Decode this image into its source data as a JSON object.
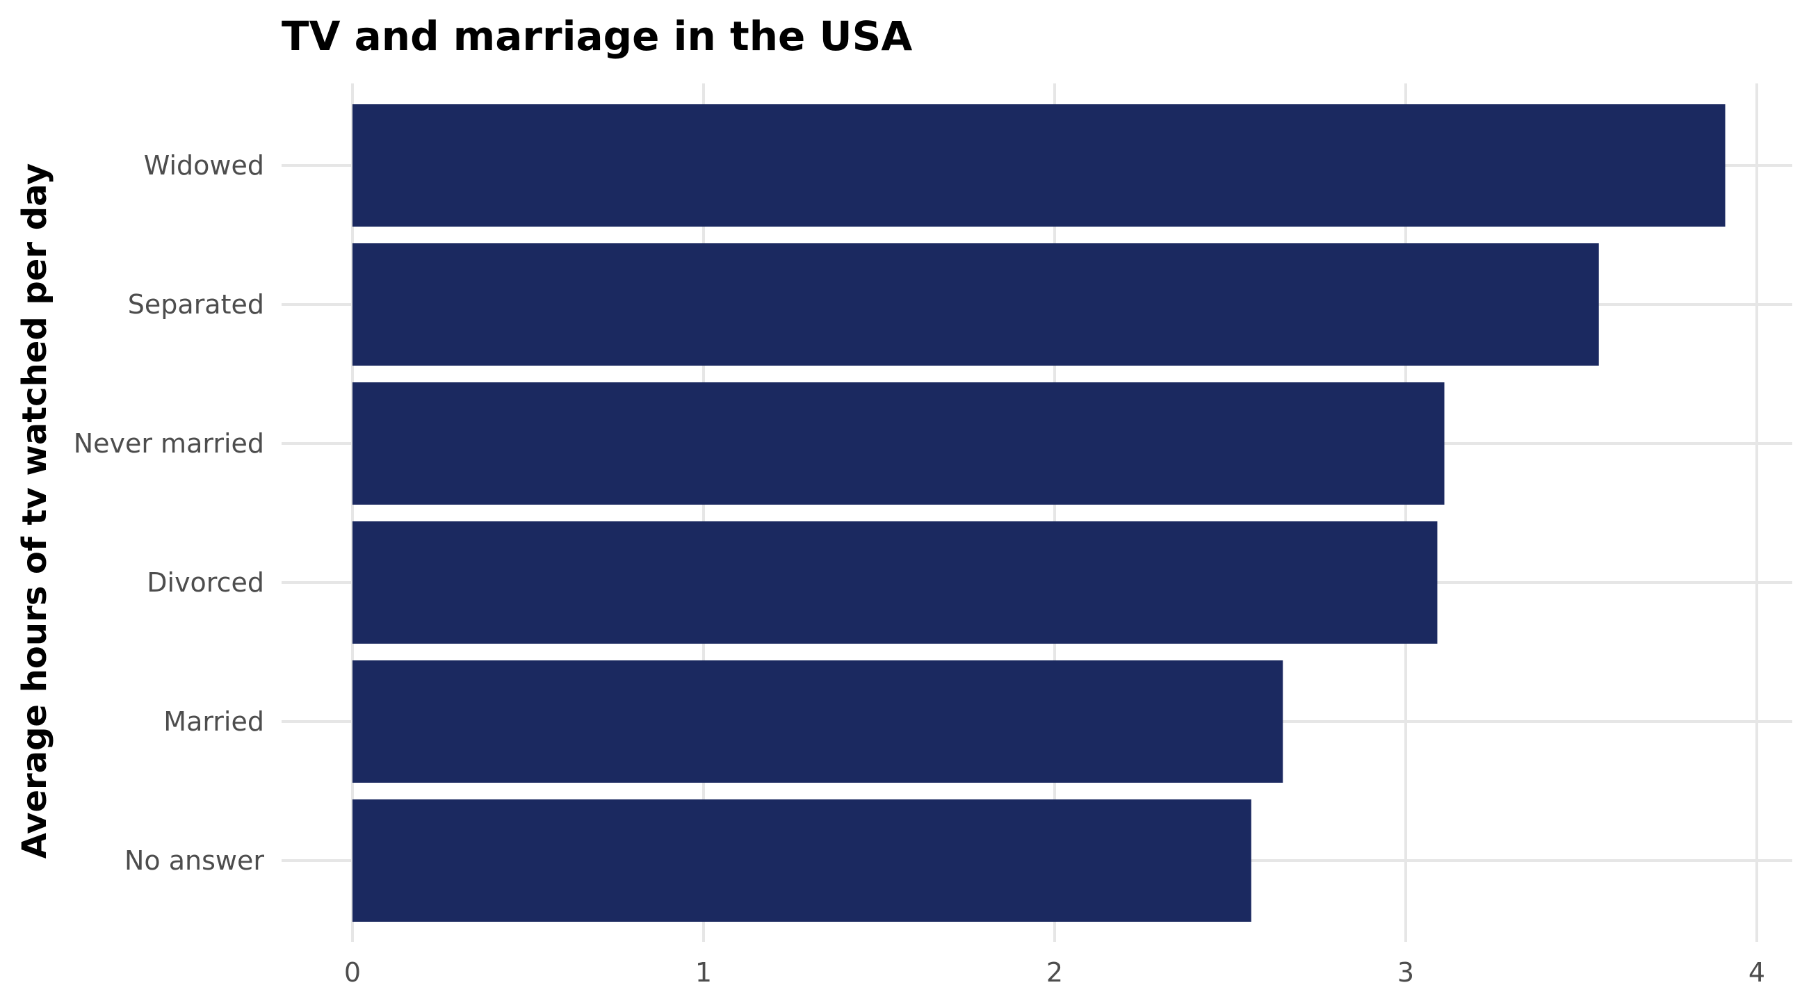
{
  "chart_data": {
    "type": "bar",
    "orientation": "horizontal",
    "title": "TV and marriage in the USA",
    "xlabel": "",
    "ylabel": "Average hours of tv watched per day",
    "categories": [
      "Widowed",
      "Separated",
      "Never married",
      "Divorced",
      "Married",
      "No answer"
    ],
    "values": [
      3.91,
      3.55,
      3.11,
      3.09,
      2.65,
      2.56
    ],
    "xlim": [
      0,
      4
    ],
    "xticks": [
      "0",
      "1",
      "2",
      "3",
      "4"
    ],
    "grid": true,
    "legend": "none",
    "bar_color": "#1b2960"
  }
}
